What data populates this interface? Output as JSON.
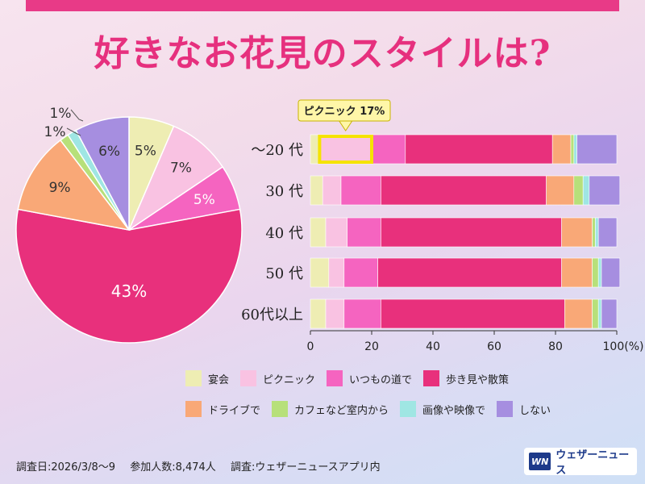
{
  "title": "好きなお花見のスタイルは?",
  "chart_data": [
    {
      "type": "pie",
      "labels": [
        "宴会",
        "ピクニック",
        "いつもの道で",
        "歩き見や散策",
        "ドライブで",
        "カフェなど室内から",
        "画像や映像で",
        "しない"
      ],
      "values": [
        5,
        7,
        5,
        43,
        9,
        1,
        1,
        6
      ],
      "value_labels": [
        "5%",
        "7%",
        "5%",
        "43%",
        "9%",
        "1%",
        "1%",
        "6%"
      ]
    },
    {
      "type": "bar",
      "orientation": "horizontal-stacked",
      "categories": [
        "〜20 代",
        "30 代",
        "40 代",
        "50 代",
        "60代以上"
      ],
      "series": [
        {
          "name": "宴会",
          "values": [
            3,
            4,
            5,
            6,
            5
          ]
        },
        {
          "name": "ピクニック",
          "values": [
            17,
            6,
            7,
            5,
            6
          ]
        },
        {
          "name": "いつもの道で",
          "values": [
            11,
            13,
            11,
            11,
            12
          ]
        },
        {
          "name": "歩き見や散策",
          "values": [
            48,
            54,
            59,
            60,
            60
          ]
        },
        {
          "name": "ドライブで",
          "values": [
            6,
            9,
            10,
            10,
            9
          ]
        },
        {
          "name": "カフェなど室内から",
          "values": [
            1,
            3,
            1,
            2,
            2
          ]
        },
        {
          "name": "画像や映像で",
          "values": [
            1,
            2,
            1,
            1,
            1
          ]
        },
        {
          "name": "しない",
          "values": [
            13,
            10,
            6,
            6,
            5
          ]
        }
      ],
      "xlim": [
        0,
        100
      ],
      "xticks": [
        0,
        20,
        40,
        60,
        80,
        100
      ],
      "xtick_labels": [
        "0",
        "20",
        "40",
        "60",
        "80",
        "100(%)"
      ],
      "annotation": {
        "text": "ピクニック 17%",
        "category_index": 0,
        "series_index": 1
      }
    }
  ],
  "colors": [
    "#eeedb3",
    "#f9c2e2",
    "#f564c0",
    "#e8307c",
    "#f9a877",
    "#b7e07a",
    "#9fe6e3",
    "#a68ee0"
  ],
  "footer": {
    "survey_date": "調査日:2026/3/8〜9",
    "participants": "参加人数:8,474人",
    "survey_by": "調査:ウェザーニュースアプリ内"
  },
  "brand": {
    "logo": "WN",
    "name": "ウェザーニュース"
  }
}
